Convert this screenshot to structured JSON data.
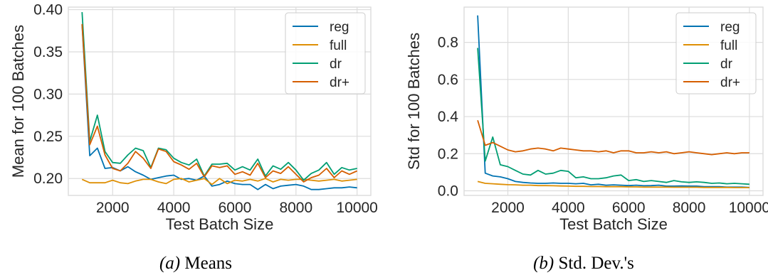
{
  "figure": {
    "colors": {
      "reg": "#0173b2",
      "full": "#de8f05",
      "dr": "#029e73",
      "dr+": "#d55e00",
      "grid": "#dcdcdc",
      "text": "#262626"
    }
  },
  "chart_data": [
    {
      "id": "means",
      "type": "line",
      "caption_label": "(a)",
      "caption_text": "Means",
      "xlabel": "Test Batch Size",
      "ylabel": "Mean for 100 Batches",
      "xlim": [
        550,
        10450
      ],
      "ylim": [
        0.18,
        0.403
      ],
      "xticks": [
        2000,
        4000,
        6000,
        8000,
        10000
      ],
      "xtick_labels": [
        "2000",
        "4000",
        "6000",
        "8000",
        "10000"
      ],
      "yticks": [
        0.2,
        0.25,
        0.3,
        0.35,
        0.4
      ],
      "ytick_labels": [
        "0.20",
        "0.25",
        "0.30",
        "0.35",
        "0.40"
      ],
      "grid": true,
      "legend_position": "top-right",
      "x": [
        1000,
        1250,
        1500,
        1750,
        2000,
        2250,
        2500,
        2750,
        3000,
        3250,
        3500,
        3750,
        4000,
        4250,
        4500,
        4750,
        5000,
        5250,
        5500,
        5750,
        6000,
        6250,
        6500,
        6750,
        7000,
        7250,
        7500,
        7750,
        8000,
        8250,
        8500,
        8750,
        9000,
        9250,
        9500,
        9750,
        10000
      ],
      "series": [
        {
          "name": "reg",
          "values": [
            0.382,
            0.227,
            0.236,
            0.212,
            0.213,
            0.209,
            0.214,
            0.208,
            0.204,
            0.199,
            0.201,
            0.203,
            0.204,
            0.199,
            0.2,
            0.198,
            0.203,
            0.191,
            0.193,
            0.197,
            0.194,
            0.193,
            0.193,
            0.187,
            0.193,
            0.188,
            0.191,
            0.192,
            0.193,
            0.191,
            0.187,
            0.187,
            0.188,
            0.189,
            0.189,
            0.19,
            0.189
          ]
        },
        {
          "name": "full",
          "values": [
            0.199,
            0.195,
            0.195,
            0.195,
            0.198,
            0.195,
            0.194,
            0.197,
            0.199,
            0.199,
            0.196,
            0.194,
            0.199,
            0.2,
            0.196,
            0.198,
            0.2,
            0.193,
            0.2,
            0.194,
            0.198,
            0.197,
            0.199,
            0.197,
            0.2,
            0.196,
            0.199,
            0.198,
            0.199,
            0.199,
            0.198,
            0.197,
            0.198,
            0.199,
            0.197,
            0.198,
            0.199
          ]
        },
        {
          "name": "dr",
          "values": [
            0.397,
            0.244,
            0.275,
            0.232,
            0.219,
            0.218,
            0.228,
            0.236,
            0.233,
            0.213,
            0.236,
            0.234,
            0.224,
            0.219,
            0.216,
            0.223,
            0.203,
            0.217,
            0.217,
            0.218,
            0.21,
            0.214,
            0.21,
            0.223,
            0.203,
            0.215,
            0.211,
            0.219,
            0.21,
            0.198,
            0.206,
            0.21,
            0.219,
            0.205,
            0.213,
            0.21,
            0.212
          ]
        },
        {
          "name": "dr+",
          "values": [
            0.383,
            0.24,
            0.262,
            0.228,
            0.212,
            0.209,
            0.218,
            0.232,
            0.224,
            0.212,
            0.235,
            0.232,
            0.22,
            0.216,
            0.211,
            0.218,
            0.202,
            0.215,
            0.213,
            0.215,
            0.205,
            0.208,
            0.204,
            0.218,
            0.201,
            0.209,
            0.206,
            0.214,
            0.205,
            0.196,
            0.201,
            0.204,
            0.212,
            0.201,
            0.209,
            0.205,
            0.209
          ]
        }
      ]
    },
    {
      "id": "stds",
      "type": "line",
      "caption_label": "(b)",
      "caption_text": "Std. Dev.'s",
      "xlabel": "Test Batch Size",
      "ylabel": "Std for 100 Batches",
      "xlim": [
        550,
        10450
      ],
      "ylim": [
        -0.025,
        0.99
      ],
      "xticks": [
        2000,
        4000,
        6000,
        8000,
        10000
      ],
      "xtick_labels": [
        "2000",
        "4000",
        "6000",
        "8000",
        "10000"
      ],
      "yticks": [
        0.0,
        0.2,
        0.4,
        0.6,
        0.8
      ],
      "ytick_labels": [
        "0.0",
        "0.2",
        "0.4",
        "0.6",
        "0.8"
      ],
      "grid": true,
      "legend_position": "top-right",
      "x": [
        1000,
        1250,
        1500,
        1750,
        2000,
        2250,
        2500,
        2750,
        3000,
        3250,
        3500,
        3750,
        4000,
        4250,
        4500,
        4750,
        5000,
        5250,
        5500,
        5750,
        6000,
        6250,
        6500,
        6750,
        7000,
        7250,
        7500,
        7750,
        8000,
        8250,
        8500,
        8750,
        9000,
        9250,
        9500,
        9750,
        10000
      ],
      "series": [
        {
          "name": "reg",
          "values": [
            0.945,
            0.095,
            0.08,
            0.075,
            0.065,
            0.05,
            0.045,
            0.042,
            0.04,
            0.04,
            0.042,
            0.04,
            0.04,
            0.038,
            0.04,
            0.032,
            0.035,
            0.03,
            0.032,
            0.03,
            0.028,
            0.03,
            0.027,
            0.028,
            0.03,
            0.025,
            0.025,
            0.026,
            0.025,
            0.025,
            0.022,
            0.022,
            0.022,
            0.02,
            0.02,
            0.02,
            0.018
          ]
        },
        {
          "name": "full",
          "values": [
            0.05,
            0.04,
            0.038,
            0.035,
            0.033,
            0.032,
            0.03,
            0.03,
            0.028,
            0.028,
            0.027,
            0.026,
            0.025,
            0.024,
            0.024,
            0.023,
            0.023,
            0.022,
            0.022,
            0.022,
            0.021,
            0.021,
            0.02,
            0.02,
            0.02,
            0.02,
            0.019,
            0.019,
            0.019,
            0.019,
            0.018,
            0.018,
            0.018,
            0.018,
            0.017,
            0.017,
            0.017
          ]
        },
        {
          "name": "dr",
          "values": [
            0.77,
            0.16,
            0.29,
            0.14,
            0.13,
            0.11,
            0.09,
            0.085,
            0.11,
            0.09,
            0.095,
            0.11,
            0.105,
            0.07,
            0.075,
            0.065,
            0.065,
            0.07,
            0.08,
            0.085,
            0.055,
            0.06,
            0.05,
            0.055,
            0.05,
            0.045,
            0.055,
            0.048,
            0.045,
            0.048,
            0.045,
            0.04,
            0.042,
            0.038,
            0.04,
            0.038,
            0.035
          ]
        },
        {
          "name": "dr+",
          "values": [
            0.38,
            0.245,
            0.26,
            0.24,
            0.22,
            0.21,
            0.215,
            0.225,
            0.23,
            0.225,
            0.215,
            0.23,
            0.225,
            0.22,
            0.215,
            0.215,
            0.21,
            0.215,
            0.205,
            0.215,
            0.215,
            0.205,
            0.205,
            0.21,
            0.205,
            0.21,
            0.2,
            0.205,
            0.21,
            0.205,
            0.2,
            0.195,
            0.2,
            0.205,
            0.2,
            0.205,
            0.205
          ]
        }
      ]
    }
  ]
}
